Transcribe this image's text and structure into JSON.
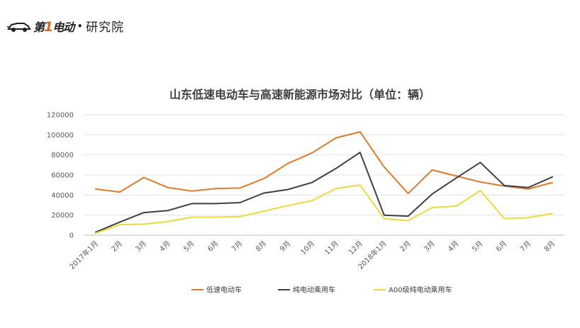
{
  "logo": {
    "brand_prefix": "第",
    "brand_num": "1",
    "brand_suffix": "电动",
    "separator": "•",
    "dept": "研究院",
    "colors": {
      "accent": "#e0641e",
      "text": "#1e1e1e"
    }
  },
  "chart_data": {
    "type": "line",
    "title": "山东低速电动车与高速新能源市场对比（单位：辆）",
    "xlabel": "",
    "ylabel": "",
    "categories": [
      "2017年1月",
      "2月",
      "3月",
      "4月",
      "5月",
      "6月",
      "7月",
      "8月",
      "9月",
      "10月",
      "11月",
      "12月",
      "2018年1月",
      "2月",
      "3月",
      "4月",
      "5月",
      "6月",
      "7月",
      "8月"
    ],
    "yticks": [
      "0",
      "20000",
      "40000",
      "60000",
      "80000",
      "100000",
      "120000"
    ],
    "ylim": [
      0,
      120000
    ],
    "grid": true,
    "legend_position": "bottom",
    "series": [
      {
        "name": "低速电动车",
        "color": "#e07b2a",
        "values": [
          46000,
          43000,
          57500,
          47500,
          44000,
          46500,
          47000,
          56500,
          71500,
          82000,
          97000,
          103000,
          68000,
          41500,
          65000,
          59000,
          53000,
          49000,
          46000,
          52500
        ]
      },
      {
        "name": "纯电动乘用车",
        "color": "#3f3f46",
        "values": [
          3000,
          13000,
          22500,
          24500,
          31500,
          31500,
          32500,
          42000,
          45500,
          52500,
          66500,
          82500,
          20000,
          19000,
          41000,
          57000,
          72500,
          49500,
          47500,
          58000
        ]
      },
      {
        "name": "A00级纯电动乘用车",
        "color": "#ecd93c",
        "values": [
          2000,
          10500,
          11000,
          13500,
          18000,
          18000,
          18500,
          24000,
          29500,
          34500,
          46500,
          50000,
          16500,
          14500,
          27500,
          29000,
          44500,
          16500,
          17500,
          21500
        ]
      }
    ]
  }
}
